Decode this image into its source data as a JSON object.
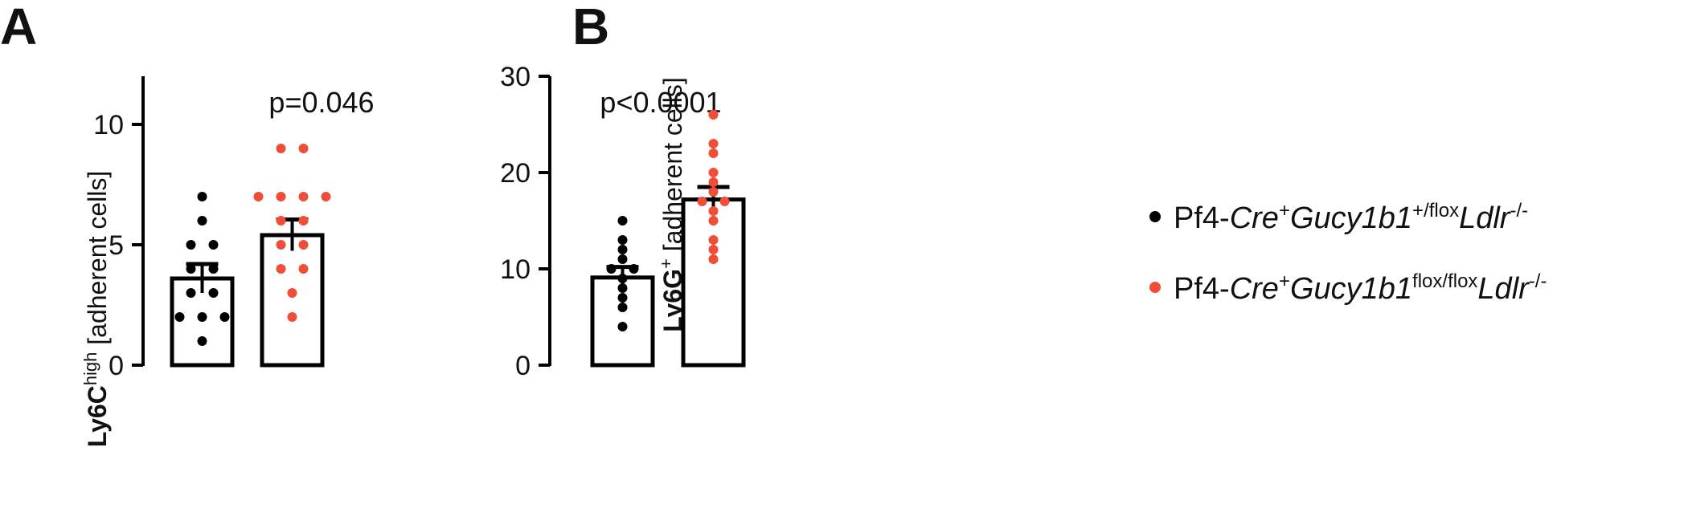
{
  "panels": {
    "a": {
      "label": "A"
    },
    "b": {
      "label": "B"
    }
  },
  "colors": {
    "control": "#000000",
    "knockout": "#f04e37",
    "axis": "#000000"
  },
  "legend": {
    "placement": "right",
    "items": [
      {
        "prefix": "Pf4-",
        "cre": "Cre",
        "cre_sup": "+",
        "gene": "Gucy1b1",
        "gene_sup": "+/flox",
        "ldlr": "Ldlr",
        "ldlr_sup": "-/-"
      },
      {
        "prefix": "Pf4-",
        "cre": "Cre",
        "cre_sup": "+",
        "gene": "Gucy1b1",
        "gene_sup": "flox/flox",
        "ldlr": "Ldlr",
        "ldlr_sup": "-/-"
      }
    ]
  },
  "chart_data": [
    {
      "type": "bar",
      "panel": "A",
      "ylabel_main": "Ly6C",
      "ylabel_sup": "high",
      "ylabel_rest": " [adherent cells]",
      "ylim": [
        0,
        12
      ],
      "yticks": [
        0,
        5,
        10
      ],
      "ytick_labels": [
        "0",
        "5",
        "10"
      ],
      "annotation": "p=0.046",
      "groups": [
        {
          "mean": 3.6,
          "sem": 0.6,
          "points": [
            7,
            6,
            5,
            5,
            4,
            4,
            3,
            3,
            2,
            2,
            2,
            1
          ]
        },
        {
          "mean": 5.4,
          "sem": 0.65,
          "points": [
            9,
            9,
            7,
            7,
            7,
            7,
            6,
            6,
            5,
            5,
            4,
            4,
            3,
            2
          ]
        }
      ]
    },
    {
      "type": "bar",
      "panel": "B",
      "ylabel_main": "Ly6G",
      "ylabel_sup": "+",
      "ylabel_rest": " [adherent cells]",
      "ylim": [
        0,
        30
      ],
      "yticks": [
        0,
        10,
        20,
        30
      ],
      "ytick_labels": [
        "0",
        "10",
        "20",
        "30"
      ],
      "annotation": "p<0.0001",
      "groups": [
        {
          "mean": 9.1,
          "sem": 1.1,
          "points": [
            15,
            13,
            12,
            11,
            10,
            10,
            9,
            8,
            7,
            6,
            4
          ]
        },
        {
          "mean": 17.2,
          "sem": 1.3,
          "points": [
            26,
            23,
            22,
            20,
            19,
            18,
            17,
            17,
            16,
            15,
            13,
            12,
            11
          ]
        }
      ]
    }
  ]
}
